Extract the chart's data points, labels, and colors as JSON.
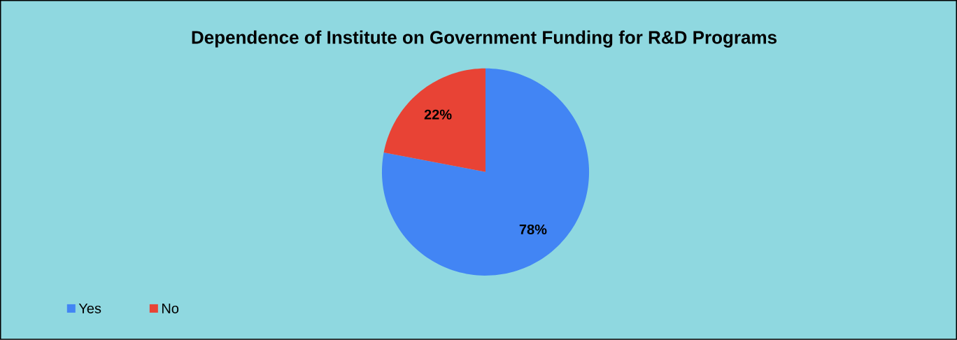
{
  "chart_data": {
    "type": "pie",
    "title": "Dependence of Institute on Government Funding for R&D Programs",
    "categories": [
      "Yes",
      "No"
    ],
    "values": [
      78,
      22
    ],
    "colors": [
      "#4285f4",
      "#e84335"
    ],
    "value_labels": [
      "78%",
      "22%"
    ],
    "legend": "bottom left"
  }
}
